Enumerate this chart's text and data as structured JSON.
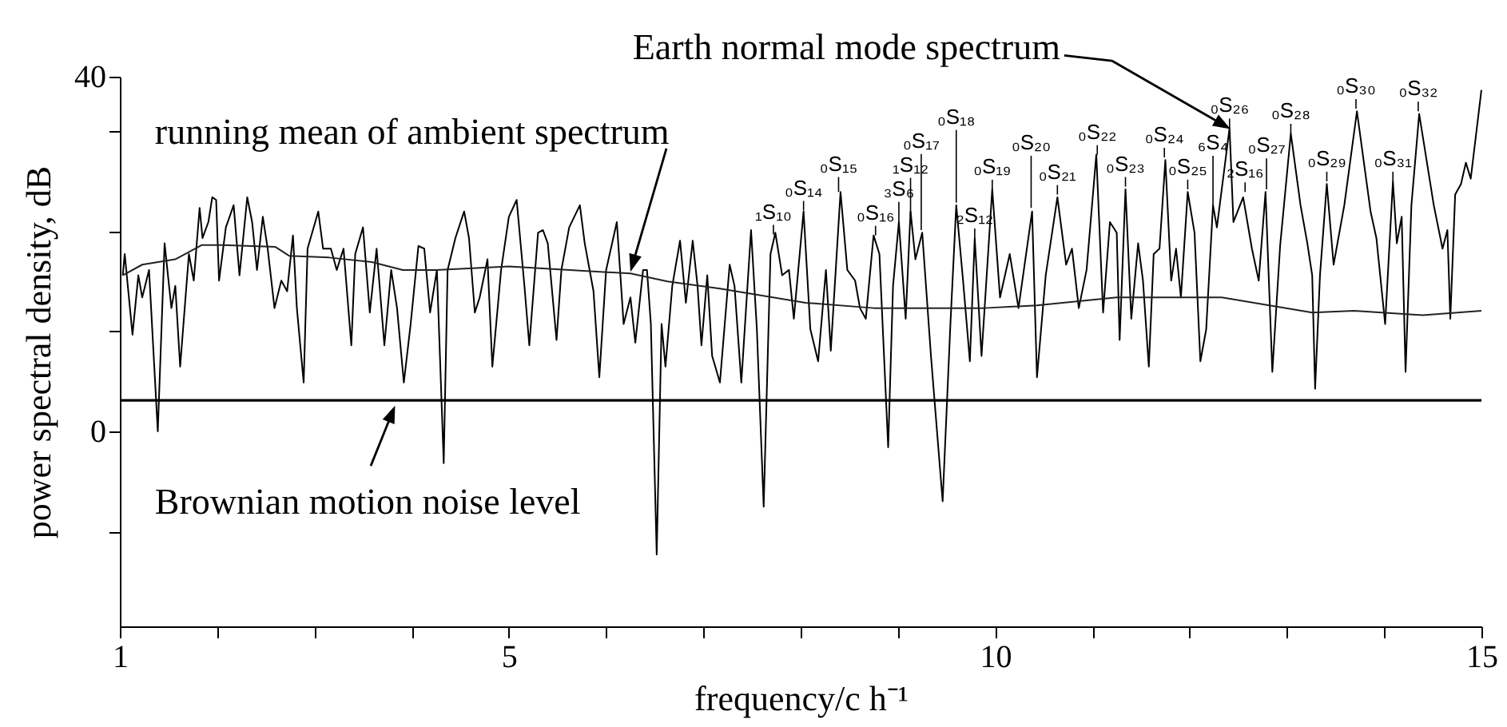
{
  "chart_data": {
    "type": "line",
    "xlabel": "frequency/c h⁻¹",
    "ylabel": "power spectral density, dB",
    "xlim": [
      1,
      15
    ],
    "ylim": [
      -22,
      40
    ],
    "xticks": [
      1,
      {
        "value": 2,
        "label": null
      },
      {
        "value": 3,
        "label": null
      },
      {
        "value": 4,
        "label": null
      },
      5,
      {
        "value": 6,
        "label": null
      },
      {
        "value": 7,
        "label": null
      },
      {
        "value": 8,
        "label": null
      },
      {
        "value": 9,
        "label": null
      },
      10,
      {
        "value": 11,
        "label": null
      },
      {
        "value": 12,
        "label": null
      },
      {
        "value": 13,
        "label": null
      },
      {
        "value": 14,
        "label": null
      },
      15
    ],
    "yticks": [
      {
        "value": -11.3,
        "label": null
      },
      0,
      {
        "value": 11.3,
        "label": null
      },
      {
        "value": 22.6,
        "label": null
      },
      {
        "value": 33.9,
        "label": null
      },
      40
    ],
    "series": [
      {
        "name": "Earth normal mode spectrum",
        "color": "#000000",
        "x": [
          1.03,
          1.05,
          1.13,
          1.19,
          1.23,
          1.3,
          1.39,
          1.46,
          1.53,
          1.57,
          1.62,
          1.71,
          1.76,
          1.82,
          1.85,
          1.91,
          1.95,
          1.99,
          2.02,
          2.09,
          2.17,
          2.23,
          2.31,
          2.36,
          2.41,
          2.47,
          2.52,
          2.59,
          2.66,
          2.72,
          2.78,
          2.82,
          2.89,
          2.93,
          3.04,
          3.09,
          3.17,
          3.23,
          3.3,
          3.38,
          3.42,
          3.5,
          3.57,
          3.64,
          3.72,
          3.79,
          3.85,
          3.92,
          3.99,
          4.07,
          4.13,
          4.19,
          4.26,
          4.33,
          4.37,
          4.45,
          4.54,
          4.59,
          4.65,
          4.7,
          4.78,
          4.83,
          4.92,
          5.0,
          5.08,
          5.16,
          5.21,
          5.3,
          5.35,
          5.4,
          5.49,
          5.54,
          5.62,
          5.73,
          5.78,
          5.87,
          5.93,
          6.0,
          6.11,
          6.18,
          6.25,
          6.3,
          6.38,
          6.42,
          6.46,
          6.52,
          6.57,
          6.61,
          6.68,
          6.76,
          6.82,
          6.89,
          6.94,
          6.98,
          7.04,
          7.09,
          7.17,
          7.27,
          7.32,
          7.39,
          7.49,
          7.55,
          7.62,
          7.69,
          7.74,
          7.81,
          7.88,
          7.93,
          8.03,
          8.1,
          8.18,
          8.26,
          8.31,
          8.41,
          8.48,
          8.56,
          8.61,
          8.67,
          8.75,
          8.81,
          8.9,
          8.95,
          9.01,
          9.08,
          9.13,
          9.18,
          9.25,
          9.34,
          9.46,
          9.54,
          9.6,
          9.67,
          9.74,
          9.79,
          9.86,
          9.97,
          10.05,
          10.15,
          10.24,
          10.38,
          10.43,
          10.52,
          10.64,
          10.73,
          10.79,
          10.86,
          10.94,
          11.04,
          11.11,
          11.18,
          11.25,
          11.28,
          11.34,
          11.4,
          11.47,
          11.52,
          11.58,
          11.63,
          11.69,
          11.75,
          11.81,
          11.86,
          11.91,
          11.98,
          12.05,
          12.11,
          12.17,
          12.24,
          12.28,
          12.41,
          12.45,
          12.55,
          12.64,
          12.71,
          12.78,
          12.85,
          12.93,
          13.04,
          13.14,
          13.21,
          13.26,
          13.29,
          13.34,
          13.41,
          13.48,
          13.59,
          13.72,
          13.86,
          13.92,
          14.01,
          14.09,
          14.13,
          14.18,
          14.22,
          14.28,
          14.36,
          14.51,
          14.6,
          14.65,
          14.68,
          14.73,
          14.79,
          14.84,
          14.89,
          15.0
        ],
        "values": [
          17.6,
          20,
          10.9,
          17.6,
          15.1,
          18.2,
          0,
          21.2,
          13.9,
          16.4,
          7.3,
          20,
          17,
          25.2,
          21.8,
          23.6,
          26.4,
          26.1,
          17,
          23,
          25.5,
          17.6,
          26.4,
          23.6,
          18.2,
          24.2,
          20.6,
          13.9,
          17,
          15.8,
          22.1,
          13.9,
          5.5,
          20.6,
          24.8,
          20.6,
          20.6,
          18.2,
          20.6,
          9.7,
          20,
          23,
          13.4,
          20.6,
          9.7,
          18.2,
          13.9,
          5.5,
          12.1,
          20.9,
          20.6,
          13.4,
          18.2,
          -3.6,
          18.2,
          21.8,
          24.8,
          21.8,
          13.4,
          15.1,
          19.4,
          7.3,
          18.2,
          24.2,
          26.1,
          16.4,
          9.7,
          22.4,
          22.7,
          21.2,
          10.3,
          18.2,
          23,
          25.5,
          21.2,
          15.8,
          6.1,
          18.2,
          23.6,
          12.1,
          15.1,
          10,
          18.2,
          18.2,
          12.1,
          -13.9,
          12.1,
          7.3,
          16.4,
          21.5,
          14.5,
          21.5,
          16.4,
          9.7,
          17.6,
          8.5,
          5.5,
          18.8,
          16.4,
          5.5,
          22.7,
          11.5,
          -8.5,
          20,
          22.4,
          17.6,
          18.2,
          12.7,
          24.8,
          11.5,
          7.9,
          18.2,
          9.1,
          27,
          18.2,
          17,
          13.9,
          12.7,
          22.1,
          20,
          -1.8,
          16.4,
          23.6,
          12.7,
          24.8,
          19.4,
          22.4,
          8.5,
          -7.9,
          12.1,
          25.5,
          17,
          7.9,
          21.8,
          8.5,
          27.3,
          15.1,
          20,
          13.9,
          24.8,
          6.1,
          17.6,
          26.4,
          18.8,
          20.6,
          13.9,
          18.2,
          31.2,
          13.4,
          23.6,
          22.4,
          10.3,
          27.3,
          12.7,
          21.2,
          17,
          7.3,
          20,
          20.6,
          30.6,
          17,
          20.6,
          15.1,
          27,
          22.4,
          7.9,
          11.5,
          25.5,
          23,
          34.2,
          23.6,
          26.4,
          20.6,
          17,
          27,
          6.7,
          20.9,
          33.6,
          25.5,
          21.2,
          17.6,
          4.8,
          17.6,
          27.9,
          18.8,
          25.5,
          36.1,
          24.8,
          21.8,
          12.1,
          28.2,
          21.2,
          24.2,
          6.7,
          25.5,
          35.8,
          25.5,
          20.6,
          22.7,
          12.7,
          26.7,
          27.9,
          30.3,
          28.5,
          38.5
        ]
      },
      {
        "color": "#222222",
        "x": [
          1.03,
          1.23,
          1.57,
          1.84,
          2.06,
          2.6,
          2.74,
          3.15,
          3.59,
          3.91,
          4.25,
          5.0,
          6.25,
          6.63,
          7.17,
          8.05,
          8.75,
          9.34,
          9.89,
          10.43,
          11.25,
          11.79,
          12.33,
          13.26,
          13.69,
          14.4,
          15.0
        ],
        "values": [
          17.6,
          18.8,
          19.4,
          21,
          21,
          20.8,
          19.8,
          19.6,
          19.1,
          18.2,
          18.2,
          18.6,
          17.8,
          16.9,
          16.1,
          14.5,
          13.9,
          13.9,
          13.9,
          14.2,
          15.1,
          15.1,
          15.1,
          13.4,
          13.6,
          13.1,
          13.6
        ]
      }
    ],
    "ref_lines": [
      {
        "axis": "y",
        "value": 3.5,
        "label": "Brownian motion noise level"
      }
    ],
    "annotations": [
      "running mean of ambient spectrum",
      {
        "text": "₁S₁₀",
        "x": 7.72,
        "y": 22.2
      },
      {
        "text": "₀S₁₄",
        "x": 8.03,
        "y": 24.9
      },
      {
        "text": "₀S₁₅",
        "x": 8.39,
        "y": 27
      },
      {
        "text": "₀S₁₆",
        "x": 8.77,
        "y": 22.1
      },
      {
        "text": "₃S₆",
        "x": 9.01,
        "y": 23.6
      },
      {
        "text": "₁S₁₂",
        "x": 9.13,
        "y": 24.2
      },
      {
        "text": "₀S₁₇",
        "x": 9.24,
        "y": 22.7
      },
      {
        "text": "₀S₁₈",
        "x": 9.6,
        "y": 25.8
      },
      {
        "text": "₂S₁₂",
        "x": 9.79,
        "y": 21.8
      },
      {
        "text": "₀S₁₉",
        "x": 9.97,
        "y": 27.3
      },
      {
        "text": "₀S₂₀",
        "x": 10.37,
        "y": 25.2
      },
      {
        "text": "₀S₂₁",
        "x": 10.64,
        "y": 26.7
      },
      {
        "text": "₀S₂₂",
        "x": 11.05,
        "y": 31.2
      },
      {
        "text": "₀S₂₃",
        "x": 11.34,
        "y": 27.6
      },
      {
        "text": "₀S₂₄",
        "x": 11.74,
        "y": 30.9
      },
      {
        "text": "₀S₂₅",
        "x": 11.98,
        "y": 27.3
      },
      {
        "text": "₆S₄",
        "x": 12.24,
        "y": 25.5
      },
      {
        "text": "₀S₂₆",
        "x": 12.41,
        "y": 34.2
      },
      {
        "text": "₂S₁₆",
        "x": 12.57,
        "y": 27
      },
      {
        "text": "₀S₂₇",
        "x": 12.79,
        "y": 27.3
      },
      {
        "text": "₀S₂₈",
        "x": 13.04,
        "y": 33.6
      },
      {
        "text": "₀S₂₉",
        "x": 13.41,
        "y": 28.2
      },
      {
        "text": "₀S₃₀",
        "x": 13.71,
        "y": 36.4
      },
      {
        "text": "₀S₃₁",
        "x": 14.09,
        "y": 28.2
      },
      {
        "text": "₀S₃₂",
        "x": 14.35,
        "y": 36.1
      }
    ]
  }
}
